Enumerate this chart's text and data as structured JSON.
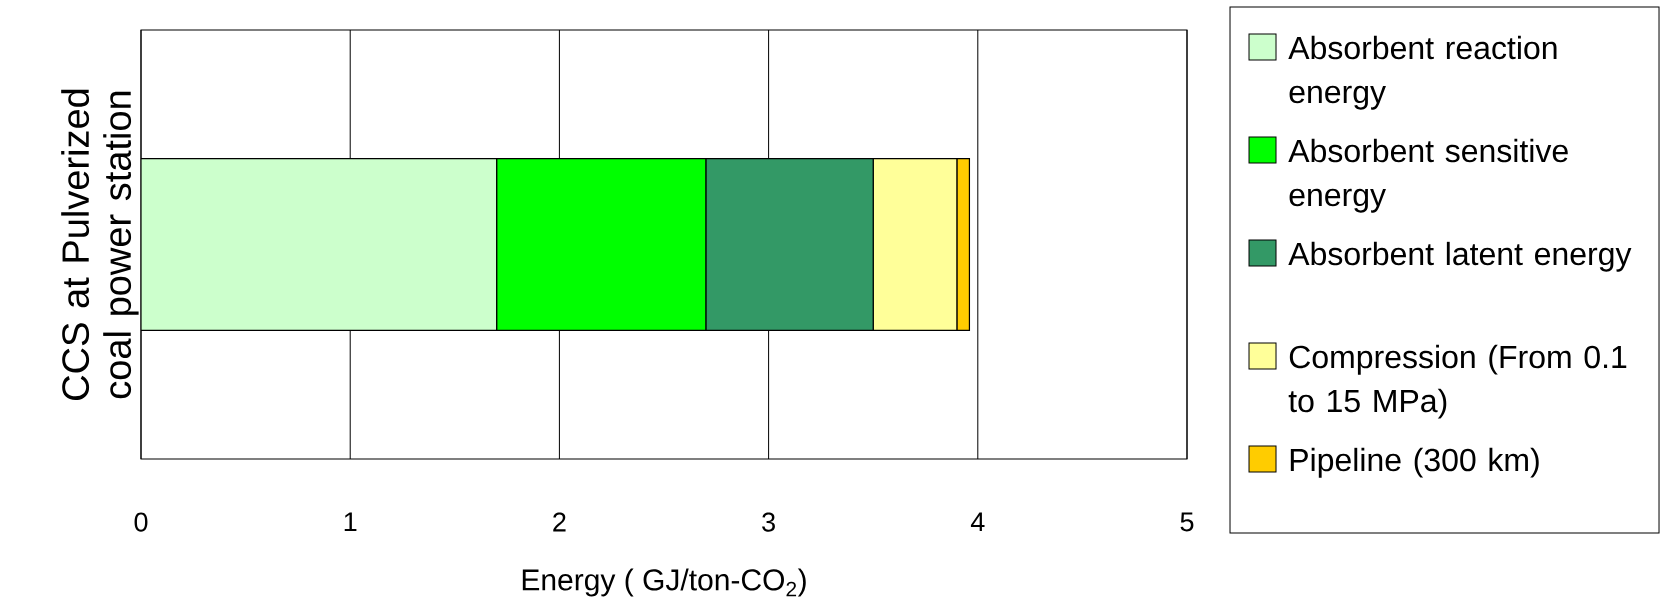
{
  "chart_data": {
    "type": "bar",
    "orientation": "horizontal",
    "stacked": true,
    "xlabel": "Energy ( GJ/ton-CO$_{2}$)",
    "ylabel": "CCS at Pulverized coal power station",
    "categories": [
      null
    ],
    "xlim": [
      0,
      5
    ],
    "xticks": [
      0,
      1,
      2,
      3,
      4,
      5
    ],
    "grid": "x",
    "legend": "right",
    "series": [
      {
        "name": "Absorbent reaction energy",
        "color": "#ccffcc",
        "values": [
          1.7
        ]
      },
      {
        "name": "Absorbent sensitive energy",
        "color": "#00ff00",
        "values": [
          1.0
        ]
      },
      {
        "name": "Absorbent latent energy",
        "color": "#339966",
        "values": [
          0.8
        ]
      },
      {
        "name": "Compression (From 0.1 to 15 MPa)",
        "color": "#ffff99",
        "values": [
          0.4
        ]
      },
      {
        "name": "Pipeline (300 km)",
        "color": "#ffcc00",
        "values": [
          0.06
        ]
      }
    ]
  }
}
